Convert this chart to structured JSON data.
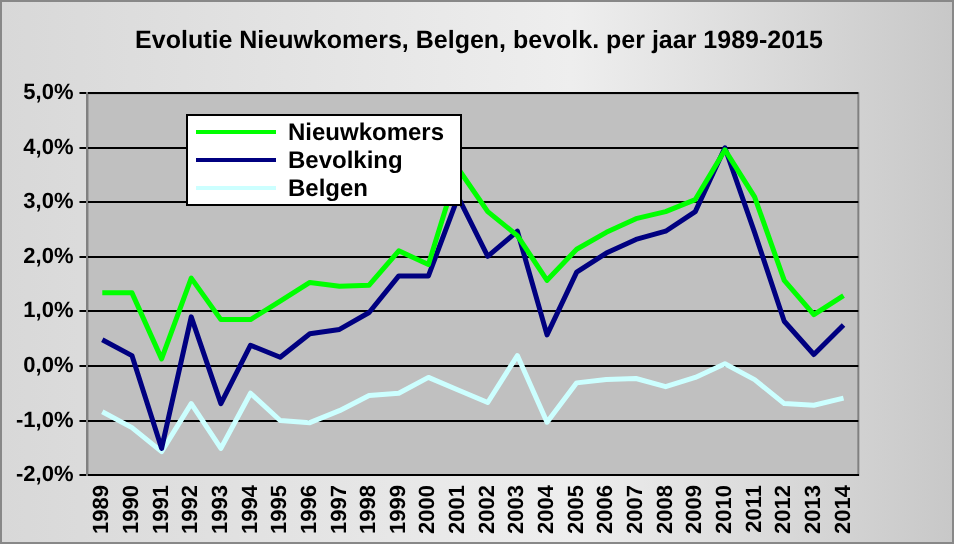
{
  "chart_data": {
    "type": "line",
    "title": "Evolutie Nieuwkomers, Belgen, bevolk. per jaar 1989-2015",
    "categories": [
      "1989",
      "1990",
      "1991",
      "1992",
      "1993",
      "1994",
      "1995",
      "1996",
      "1997",
      "1998",
      "1999",
      "2000",
      "2001",
      "2002",
      "2003",
      "2004",
      "2005",
      "2006",
      "2007",
      "2008",
      "2009",
      "2010",
      "2011",
      "2012",
      "2013",
      "2014"
    ],
    "series": [
      {
        "name": "Nieuwkomers",
        "color": "#00ff00",
        "values": [
          1.34,
          1.34,
          0.13,
          1.61,
          0.85,
          0.85,
          1.19,
          1.53,
          1.46,
          1.48,
          2.11,
          1.86,
          3.62,
          2.83,
          2.39,
          1.57,
          2.14,
          2.45,
          2.7,
          2.83,
          3.05,
          3.96,
          3.1,
          1.57,
          0.94,
          1.29
        ]
      },
      {
        "name": "Bevolking",
        "color": "#000080",
        "values": [
          0.48,
          0.19,
          -1.51,
          0.9,
          -0.69,
          0.38,
          0.16,
          0.59,
          0.67,
          0.98,
          1.65,
          1.65,
          3.1,
          2.01,
          2.47,
          0.57,
          1.72,
          2.07,
          2.32,
          2.47,
          2.83,
          4.0,
          2.45,
          0.82,
          0.21,
          0.75
        ]
      },
      {
        "name": "Belgen",
        "color": "#ccffff",
        "values": [
          -0.84,
          -1.13,
          -1.57,
          -0.69,
          -1.51,
          -0.5,
          -1.0,
          -1.04,
          -0.82,
          -0.54,
          -0.5,
          -0.21,
          -0.44,
          -0.67,
          0.19,
          -1.03,
          -0.31,
          -0.25,
          -0.23,
          -0.38,
          -0.21,
          0.04,
          -0.25,
          -0.69,
          -0.72,
          -0.59
        ]
      }
    ],
    "ylim": [
      -2,
      5
    ],
    "yticks": [
      {
        "value": -2,
        "label": "-2,0%"
      },
      {
        "value": -1,
        "label": "-1,0%"
      },
      {
        "value": 0,
        "label": "0,0%"
      },
      {
        "value": 1,
        "label": "1,0%"
      },
      {
        "value": 2,
        "label": "2,0%"
      },
      {
        "value": 3,
        "label": "3,0%"
      },
      {
        "value": 4,
        "label": "4,0%"
      },
      {
        "value": 5,
        "label": "5,0%"
      }
    ],
    "grid": "y",
    "legend": "top left",
    "marker": "none",
    "line_style": "solid"
  }
}
